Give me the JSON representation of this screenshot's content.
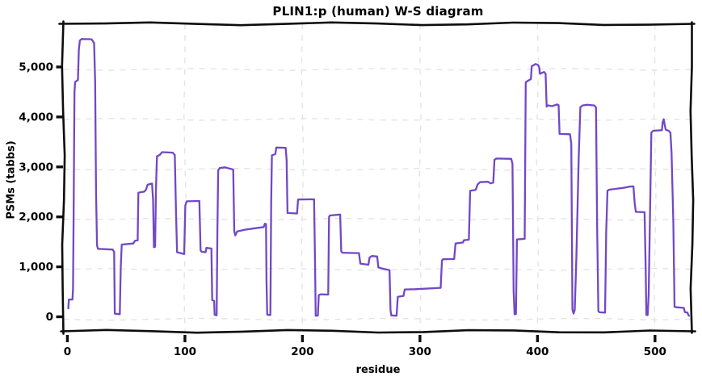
{
  "chart": {
    "title": "PLIN1:p (human) W-S diagram",
    "x_axis": {
      "label": "residue",
      "tick_labels": [
        "0",
        "100",
        "200",
        "300",
        "400",
        "500"
      ]
    },
    "y_axis": {
      "label": "PSMs (tabbs)",
      "tick_labels": [
        "0",
        "1,000",
        "2,000",
        "3,000",
        "4,000",
        "5,000"
      ]
    }
  },
  "colors": {
    "line": "#7148c6",
    "grid": "#e4e4e4",
    "axis": "#0d0d0d",
    "background": "#ffffff",
    "text": "#000000"
  },
  "chart_data": {
    "type": "line",
    "title": "PLIN1:p (human) W-S diagram",
    "xlabel": "residue",
    "ylabel": "PSMs (tabbs)",
    "style": "xkcd-handdrawn-step-line",
    "grid": "dashed",
    "legend": "none",
    "xlim": [
      -3.4,
      531.4
    ],
    "ylim": [
      -291,
      5864
    ],
    "xticks": [
      0,
      100,
      200,
      300,
      400,
      500
    ],
    "yticks": [
      0,
      1000,
      2000,
      3000,
      4000,
      5000
    ],
    "series": [
      {
        "name": "PSMs",
        "points": [
          [
            0.8,
            170
          ],
          [
            1.2,
            345
          ],
          [
            4.3,
            345
          ],
          [
            4.8,
            560
          ],
          [
            5.3,
            2200
          ],
          [
            6.0,
            4500
          ],
          [
            6.6,
            4700
          ],
          [
            9.0,
            4740
          ],
          [
            9.7,
            5350
          ],
          [
            10.6,
            5530
          ],
          [
            12.0,
            5560
          ],
          [
            20.5,
            5555
          ],
          [
            22.7,
            5480
          ],
          [
            23.6,
            4700
          ],
          [
            24.4,
            2500
          ],
          [
            25.2,
            1430
          ],
          [
            26.0,
            1360
          ],
          [
            38.5,
            1345
          ],
          [
            39.8,
            1295
          ],
          [
            40.3,
            62
          ],
          [
            44.6,
            52
          ],
          [
            45.4,
            1000
          ],
          [
            46.2,
            1445
          ],
          [
            56.0,
            1467
          ],
          [
            57.6,
            1522
          ],
          [
            59.8,
            1530
          ],
          [
            60.4,
            2482
          ],
          [
            65.5,
            2505
          ],
          [
            66.9,
            2548
          ],
          [
            68.2,
            2642
          ],
          [
            72.0,
            2667
          ],
          [
            72.9,
            2340
          ],
          [
            73.6,
            1392
          ],
          [
            74.6,
            1402
          ],
          [
            75.4,
            2580
          ],
          [
            76.2,
            3212
          ],
          [
            78.7,
            3242
          ],
          [
            80.6,
            3296
          ],
          [
            89.6,
            3286
          ],
          [
            91.4,
            3237
          ],
          [
            92.4,
            2080
          ],
          [
            93.3,
            1292
          ],
          [
            99.4,
            1256
          ],
          [
            100.3,
            2230
          ],
          [
            101.6,
            2312
          ],
          [
            112.3,
            2318
          ],
          [
            113.3,
            1330
          ],
          [
            114.2,
            1302
          ],
          [
            117.6,
            1292
          ],
          [
            118.3,
            1377
          ],
          [
            122.5,
            1367
          ],
          [
            123.2,
            335
          ],
          [
            124.9,
            318
          ],
          [
            125.3,
            38
          ],
          [
            127.0,
            30
          ],
          [
            127.6,
            1700
          ],
          [
            128.3,
            2932
          ],
          [
            129.6,
            2977
          ],
          [
            134.2,
            2992
          ],
          [
            141.1,
            2947
          ],
          [
            142.0,
            1708
          ],
          [
            142.9,
            1628
          ],
          [
            144.4,
            1707
          ],
          [
            152.2,
            1747
          ],
          [
            167.1,
            1797
          ],
          [
            168.0,
            1862
          ],
          [
            169.0,
            1857
          ],
          [
            169.4,
            720
          ],
          [
            170.0,
            42
          ],
          [
            172.7,
            36
          ],
          [
            173.4,
            2300
          ],
          [
            174.0,
            3232
          ],
          [
            176.9,
            3257
          ],
          [
            177.7,
            3387
          ],
          [
            185.7,
            3382
          ],
          [
            186.5,
            3140
          ],
          [
            187.3,
            2077
          ],
          [
            195.4,
            2067
          ],
          [
            196.3,
            2347
          ],
          [
            209.9,
            2352
          ],
          [
            210.7,
            1080
          ],
          [
            211.3,
            20
          ],
          [
            213.1,
            24
          ],
          [
            213.9,
            432
          ],
          [
            215.5,
            450
          ],
          [
            221.9,
            444
          ],
          [
            222.6,
            2000
          ],
          [
            223.4,
            2027
          ],
          [
            232.1,
            2047
          ],
          [
            233.0,
            1312
          ],
          [
            234.1,
            1282
          ],
          [
            248.1,
            1274
          ],
          [
            249.3,
            1064
          ],
          [
            256.1,
            1042
          ],
          [
            257.1,
            1187
          ],
          [
            259.1,
            1217
          ],
          [
            263.6,
            1207
          ],
          [
            264.6,
            987
          ],
          [
            268.1,
            964
          ],
          [
            274.1,
            932
          ],
          [
            274.9,
            135
          ],
          [
            275.6,
            28
          ],
          [
            280.1,
            20
          ],
          [
            281.1,
            400
          ],
          [
            286.0,
            418
          ],
          [
            287.0,
            548
          ],
          [
            296.1,
            553
          ],
          [
            317.6,
            580
          ],
          [
            318.7,
            1127
          ],
          [
            319.7,
            1152
          ],
          [
            329.1,
            1157
          ],
          [
            330.3,
            1467
          ],
          [
            336.6,
            1487
          ],
          [
            337.4,
            1533
          ],
          [
            341.6,
            1543
          ],
          [
            342.7,
            2522
          ],
          [
            347.4,
            2540
          ],
          [
            349.0,
            2647
          ],
          [
            351.1,
            2694
          ],
          [
            358.0,
            2702
          ],
          [
            360.0,
            2670
          ],
          [
            362.4,
            2684
          ],
          [
            363.4,
            3142
          ],
          [
            365.1,
            3167
          ],
          [
            377.7,
            3162
          ],
          [
            378.7,
            3060
          ],
          [
            379.7,
            520
          ],
          [
            380.5,
            50
          ],
          [
            381.7,
            57
          ],
          [
            382.5,
            1547
          ],
          [
            389.1,
            1560
          ],
          [
            390.0,
            4694
          ],
          [
            391.4,
            4717
          ],
          [
            394.4,
            4757
          ],
          [
            395.1,
            5012
          ],
          [
            396.5,
            5034
          ],
          [
            398.4,
            5060
          ],
          [
            400.3,
            5044
          ],
          [
            401.4,
            5000
          ],
          [
            402.2,
            4862
          ],
          [
            403.3,
            4877
          ],
          [
            405.6,
            4900
          ],
          [
            406.9,
            4864
          ],
          [
            407.8,
            4207
          ],
          [
            408.9,
            4232
          ],
          [
            412.4,
            4217
          ],
          [
            416.9,
            4250
          ],
          [
            418.0,
            4234
          ],
          [
            418.8,
            3660
          ],
          [
            427.7,
            3654
          ],
          [
            428.8,
            3460
          ],
          [
            429.7,
            148
          ],
          [
            430.7,
            64
          ],
          [
            431.7,
            138
          ],
          [
            433.1,
            1200
          ],
          [
            435.1,
            3200
          ],
          [
            436.5,
            4194
          ],
          [
            438.4,
            4230
          ],
          [
            442.4,
            4244
          ],
          [
            448.3,
            4230
          ],
          [
            449.8,
            4190
          ],
          [
            450.8,
            1800
          ],
          [
            451.8,
            118
          ],
          [
            452.7,
            90
          ],
          [
            457.5,
            84
          ],
          [
            458.5,
            1700
          ],
          [
            459.6,
            2524
          ],
          [
            461.1,
            2544
          ],
          [
            470.6,
            2574
          ],
          [
            476.5,
            2594
          ],
          [
            477.7,
            2604
          ],
          [
            481.6,
            2610
          ],
          [
            482.7,
            2270
          ],
          [
            483.7,
            2100
          ],
          [
            491.1,
            2094
          ],
          [
            492.1,
            950
          ],
          [
            492.6,
            40
          ],
          [
            493.7,
            34
          ],
          [
            494.6,
            457
          ],
          [
            495.9,
            2290
          ],
          [
            496.9,
            3687
          ],
          [
            498.4,
            3724
          ],
          [
            505.9,
            3734
          ],
          [
            506.5,
            3894
          ],
          [
            507.4,
            3954
          ],
          [
            508.3,
            3837
          ],
          [
            509.1,
            3744
          ],
          [
            511.6,
            3724
          ],
          [
            513.1,
            3687
          ],
          [
            514.1,
            3290
          ],
          [
            515.6,
            1900
          ],
          [
            516.6,
            200
          ],
          [
            518.4,
            190
          ],
          [
            524.6,
            178
          ],
          [
            525.4,
            94
          ],
          [
            527.6,
            84
          ],
          [
            528.3,
            40
          ],
          [
            528.9,
            20
          ]
        ]
      }
    ]
  }
}
